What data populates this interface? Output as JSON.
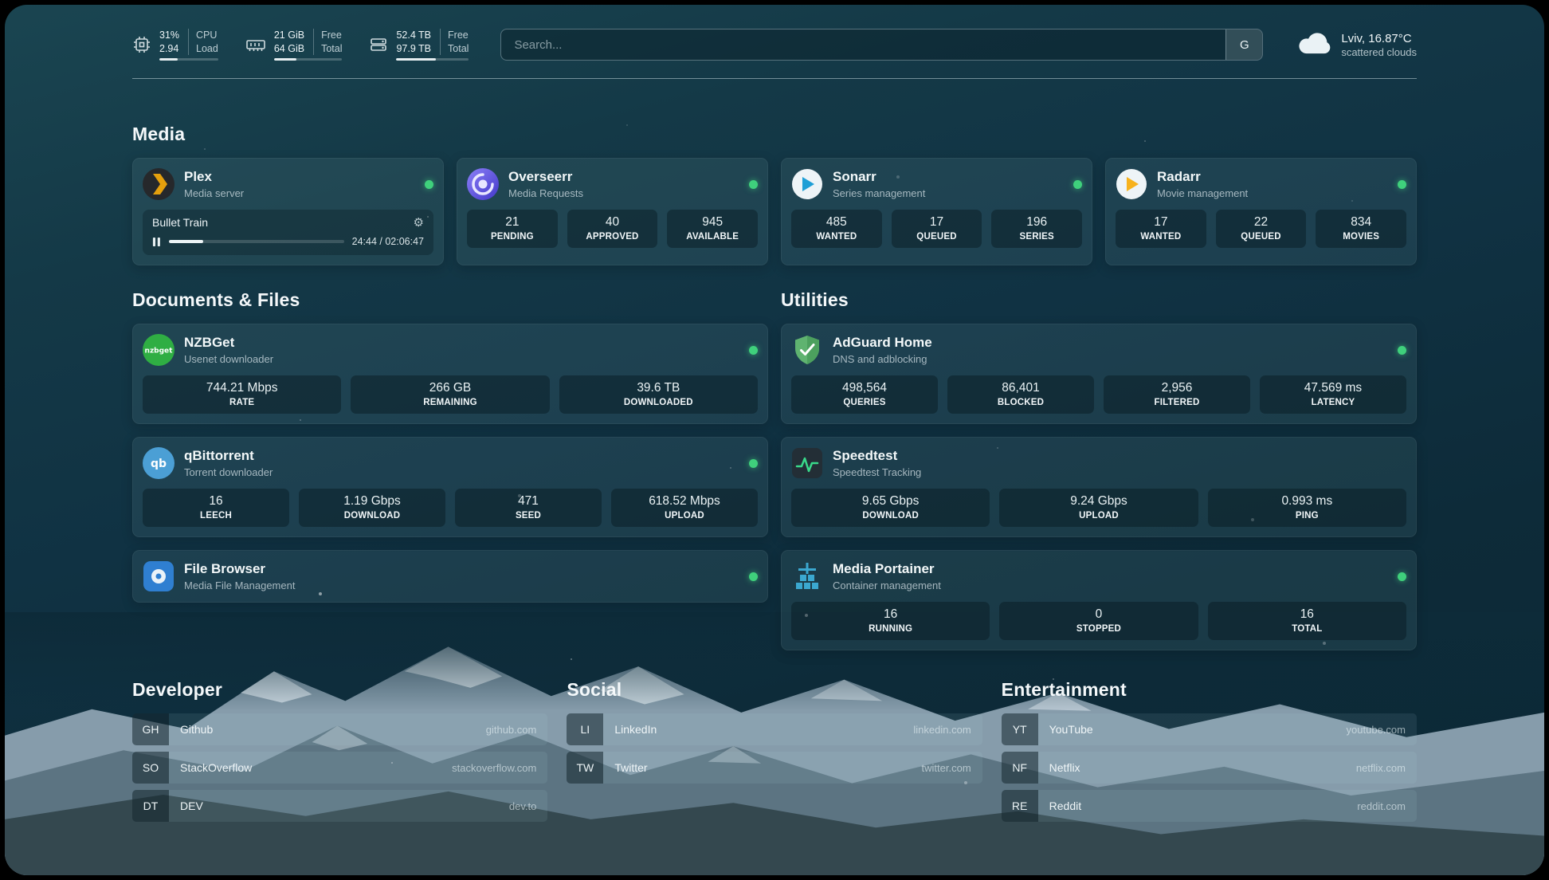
{
  "icons": {
    "gear": "⚙"
  },
  "colors": {
    "status_online": "#3fd07c",
    "plex": "#e5a00d",
    "overseerr": "#5a4fd4",
    "sonarr": "#1f9fd6",
    "radarr": "#f7b21d",
    "nzbget": "#2fae43",
    "qbittorrent": "#4b9fd5",
    "filebrowser": "#2f7fd1",
    "adguard": "#5fb370",
    "speedtest": "#39d98a",
    "portainer": "#3ba8d0"
  },
  "topbar": {
    "resources": [
      {
        "icon": "cpu-icon",
        "values": [
          "31%",
          "2.94"
        ],
        "labels": [
          "CPU",
          "Load"
        ],
        "progress": 31
      },
      {
        "icon": "memory-icon",
        "values": [
          "21 GiB",
          "64 GiB"
        ],
        "labels": [
          "Free",
          "Total"
        ],
        "progress": 33
      },
      {
        "icon": "disk-icon",
        "values": [
          "52.4 TB",
          "97.9 TB"
        ],
        "labels": [
          "Free",
          "Total"
        ],
        "progress": 54
      }
    ],
    "search": {
      "placeholder": "Search...",
      "provider_label": "G"
    },
    "weather": {
      "location": "Lviv, 16.87°C",
      "condition": "scattered clouds"
    }
  },
  "media": {
    "title": "Media",
    "plex": {
      "name": "Plex",
      "subtitle": "Media server",
      "now_playing": {
        "title": "Bullet Train",
        "time": "24:44 / 02:06:47",
        "progress": 19.5
      }
    },
    "overseerr": {
      "name": "Overseerr",
      "subtitle": "Media Requests",
      "stats": [
        {
          "value": "21",
          "label": "PENDING"
        },
        {
          "value": "40",
          "label": "APPROVED"
        },
        {
          "value": "945",
          "label": "AVAILABLE"
        }
      ]
    },
    "sonarr": {
      "name": "Sonarr",
      "subtitle": "Series management",
      "stats": [
        {
          "value": "485",
          "label": "WANTED"
        },
        {
          "value": "17",
          "label": "QUEUED"
        },
        {
          "value": "196",
          "label": "SERIES"
        }
      ]
    },
    "radarr": {
      "name": "Radarr",
      "subtitle": "Movie management",
      "stats": [
        {
          "value": "17",
          "label": "WANTED"
        },
        {
          "value": "22",
          "label": "QUEUED"
        },
        {
          "value": "834",
          "label": "MOVIES"
        }
      ]
    }
  },
  "documents": {
    "title": "Documents & Files",
    "nzbget": {
      "name": "NZBGet",
      "subtitle": "Usenet downloader",
      "stats": [
        {
          "value": "744.21 Mbps",
          "label": "RATE"
        },
        {
          "value": "266 GB",
          "label": "REMAINING"
        },
        {
          "value": "39.6 TB",
          "label": "DOWNLOADED"
        }
      ]
    },
    "qbittorrent": {
      "name": "qBittorrent",
      "subtitle": "Torrent downloader",
      "stats": [
        {
          "value": "16",
          "label": "LEECH"
        },
        {
          "value": "1.19 Gbps",
          "label": "DOWNLOAD"
        },
        {
          "value": "471",
          "label": "SEED"
        },
        {
          "value": "618.52 Mbps",
          "label": "UPLOAD"
        }
      ]
    },
    "filebrowser": {
      "name": "File Browser",
      "subtitle": "Media File Management"
    }
  },
  "utilities": {
    "title": "Utilities",
    "adguard": {
      "name": "AdGuard Home",
      "subtitle": "DNS and adblocking",
      "stats": [
        {
          "value": "498,564",
          "label": "QUERIES"
        },
        {
          "value": "86,401",
          "label": "BLOCKED"
        },
        {
          "value": "2,956",
          "label": "FILTERED"
        },
        {
          "value": "47.569 ms",
          "label": "LATENCY"
        }
      ]
    },
    "speedtest": {
      "name": "Speedtest",
      "subtitle": "Speedtest Tracking",
      "stats": [
        {
          "value": "9.65 Gbps",
          "label": "DOWNLOAD"
        },
        {
          "value": "9.24 Gbps",
          "label": "UPLOAD"
        },
        {
          "value": "0.993 ms",
          "label": "PING"
        }
      ]
    },
    "portainer": {
      "name": "Media Portainer",
      "subtitle": "Container management",
      "stats": [
        {
          "value": "16",
          "label": "RUNNING"
        },
        {
          "value": "0",
          "label": "STOPPED"
        },
        {
          "value": "16",
          "label": "TOTAL"
        }
      ]
    }
  },
  "bookmarks": [
    {
      "title": "Developer",
      "items": [
        {
          "abbr": "GH",
          "name": "Github",
          "domain": "github.com"
        },
        {
          "abbr": "SO",
          "name": "StackOverflow",
          "domain": "stackoverflow.com"
        },
        {
          "abbr": "DT",
          "name": "DEV",
          "domain": "dev.to"
        }
      ]
    },
    {
      "title": "Social",
      "items": [
        {
          "abbr": "LI",
          "name": "LinkedIn",
          "domain": "linkedin.com"
        },
        {
          "abbr": "TW",
          "name": "Twitter",
          "domain": "twitter.com"
        }
      ]
    },
    {
      "title": "Entertainment",
      "items": [
        {
          "abbr": "YT",
          "name": "YouTube",
          "domain": "youtube.com"
        },
        {
          "abbr": "NF",
          "name": "Netflix",
          "domain": "netflix.com"
        },
        {
          "abbr": "RE",
          "name": "Reddit",
          "domain": "reddit.com"
        }
      ]
    }
  ]
}
